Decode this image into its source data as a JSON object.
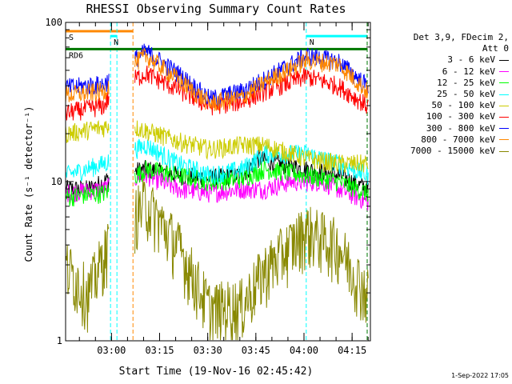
{
  "chart_data": {
    "type": "line",
    "title": "RHESSI Observing Summary Count Rates",
    "xlabel": "Start Time (19-Nov-16 02:45:42)",
    "ylabel": "Count Rate (s⁻¹ detector⁻¹)",
    "y_scale": "log",
    "ylim": [
      1,
      100
    ],
    "y_ticks": [
      "1",
      "10",
      "100"
    ],
    "xlim_minutes": [
      0,
      95
    ],
    "x_ticks": [
      {
        "label": "03:00",
        "minute": 14.3
      },
      {
        "label": "03:15",
        "minute": 29.3
      },
      {
        "label": "03:30",
        "minute": 44.3
      },
      {
        "label": "03:45",
        "minute": 59.3
      },
      {
        "label": "04:00",
        "minute": 74.3
      },
      {
        "label": "04:15",
        "minute": 89.3
      }
    ],
    "legend_header": [
      "Det 3,9, FDecim 2,",
      "Att 0"
    ],
    "series": [
      {
        "name": "3 - 6 keV",
        "color": "#000000",
        "points": [
          [
            0,
            9
          ],
          [
            7,
            9
          ],
          [
            12,
            10
          ],
          [
            15,
            11
          ],
          [
            25,
            12
          ],
          [
            35,
            11
          ],
          [
            45,
            10.5
          ],
          [
            55,
            11
          ],
          [
            60,
            14
          ],
          [
            66,
            13
          ],
          [
            75,
            12
          ],
          [
            85,
            11
          ],
          [
            94,
            9
          ]
        ]
      },
      {
        "name": "6 - 12 keV",
        "color": "#ff00ff",
        "points": [
          [
            0,
            8.5
          ],
          [
            12,
            9
          ],
          [
            15,
            9.5
          ],
          [
            25,
            11
          ],
          [
            35,
            9
          ],
          [
            45,
            8.5
          ],
          [
            55,
            9
          ],
          [
            62,
            9
          ],
          [
            70,
            10
          ],
          [
            80,
            10
          ],
          [
            94,
            7.5
          ]
        ]
      },
      {
        "name": "12 - 25 keV",
        "color": "#00ff00",
        "points": [
          [
            0,
            8
          ],
          [
            12,
            8.5
          ],
          [
            15,
            9
          ],
          [
            25,
            12
          ],
          [
            35,
            11
          ],
          [
            45,
            10
          ],
          [
            55,
            10.5
          ],
          [
            62,
            12
          ],
          [
            75,
            11
          ],
          [
            85,
            10
          ],
          [
            94,
            8.5
          ]
        ]
      },
      {
        "name": "25 - 50 keV",
        "color": "#00ffff",
        "points": [
          [
            0,
            11
          ],
          [
            12,
            13
          ],
          [
            15,
            14
          ],
          [
            25,
            17
          ],
          [
            35,
            13
          ],
          [
            45,
            11
          ],
          [
            55,
            12
          ],
          [
            62,
            15
          ],
          [
            75,
            15
          ],
          [
            85,
            13
          ],
          [
            94,
            11
          ]
        ]
      },
      {
        "name": "50 - 100 keV",
        "color": "#cccc00",
        "points": [
          [
            0,
            20
          ],
          [
            12,
            22
          ],
          [
            15,
            24
          ],
          [
            25,
            21
          ],
          [
            35,
            18
          ],
          [
            45,
            16
          ],
          [
            55,
            17
          ],
          [
            62,
            17
          ],
          [
            75,
            14
          ],
          [
            85,
            13
          ],
          [
            94,
            13
          ]
        ]
      },
      {
        "name": "100 - 300 keV",
        "color": "#ff0000",
        "points": [
          [
            0,
            27
          ],
          [
            12,
            30
          ],
          [
            15,
            38
          ],
          [
            25,
            48
          ],
          [
            35,
            38
          ],
          [
            45,
            30
          ],
          [
            55,
            32
          ],
          [
            62,
            37
          ],
          [
            75,
            46
          ],
          [
            85,
            40
          ],
          [
            94,
            30
          ]
        ]
      },
      {
        "name": "300 - 800 keV",
        "color": "#0000ff",
        "points": [
          [
            0,
            39
          ],
          [
            12,
            41
          ],
          [
            15,
            47
          ],
          [
            25,
            66
          ],
          [
            35,
            48
          ],
          [
            45,
            33
          ],
          [
            55,
            37
          ],
          [
            62,
            44
          ],
          [
            75,
            62
          ],
          [
            85,
            57
          ],
          [
            94,
            40
          ]
        ]
      },
      {
        "name": "800 - 7000 keV",
        "color": "#ff8800",
        "points": [
          [
            0,
            35
          ],
          [
            12,
            37
          ],
          [
            15,
            45
          ],
          [
            25,
            62
          ],
          [
            35,
            44
          ],
          [
            45,
            31
          ],
          [
            55,
            34
          ],
          [
            62,
            42
          ],
          [
            75,
            58
          ],
          [
            85,
            55
          ],
          [
            94,
            37
          ]
        ]
      },
      {
        "name": "7000 - 15000 keV",
        "color": "#888800",
        "points": [
          [
            0,
            3
          ],
          [
            7,
            2
          ],
          [
            12,
            3.5
          ],
          [
            15,
            4.5
          ],
          [
            25,
            7.5
          ],
          [
            35,
            4
          ],
          [
            45,
            1.6
          ],
          [
            55,
            1.7
          ],
          [
            62,
            2.8
          ],
          [
            75,
            5
          ],
          [
            85,
            4
          ],
          [
            94,
            2
          ]
        ]
      }
    ],
    "annotations": [
      {
        "label": "S",
        "color": "#ff8800",
        "start_minute": 0,
        "end_minute": 21,
        "level": 88
      },
      {
        "label": "N",
        "color": "#00ffff",
        "start_minute": 14,
        "end_minute": 16,
        "level": 82
      },
      {
        "label": "N",
        "color": "#00ffff",
        "start_minute": 75,
        "end_minute": 94,
        "level": 82
      },
      {
        "label": "RD6",
        "color": "#007700",
        "start_minute": 0,
        "end_minute": 94,
        "level": 68
      }
    ]
  },
  "timestamp": "1-Sep-2022 17:05"
}
